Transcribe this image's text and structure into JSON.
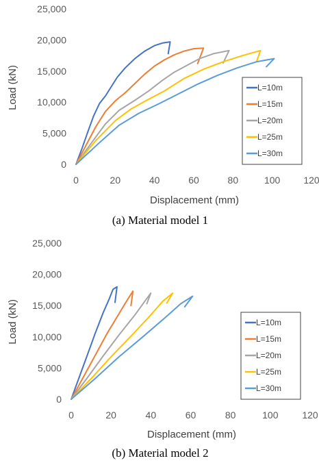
{
  "chart_data": [
    {
      "type": "line",
      "caption": "(a) Material model 1",
      "xlabel": "Displacement (mm)",
      "ylabel": "Load (kN)",
      "xlim": [
        0,
        120
      ],
      "ylim": [
        0,
        25000
      ],
      "x_ticks": [
        "0",
        "20",
        "40",
        "60",
        "80",
        "100",
        "120"
      ],
      "y_ticks": [
        "0",
        "5,000",
        "10,000",
        "15,000",
        "20,000",
        "25,000"
      ],
      "grid": false,
      "legend_position": "right",
      "series": [
        {
          "name": "L=10m",
          "color": "#4472C4",
          "points": [
            [
              0,
              0
            ],
            [
              3,
              2500
            ],
            [
              6,
              5200
            ],
            [
              9,
              7800
            ],
            [
              12,
              9800
            ],
            [
              15,
              11000
            ],
            [
              18,
              12500
            ],
            [
              21,
              14000
            ],
            [
              25,
              15500
            ],
            [
              30,
              17000
            ],
            [
              35,
              18200
            ],
            [
              40,
              19100
            ],
            [
              44,
              19500
            ],
            [
              48,
              19700
            ],
            [
              47,
              17800
            ]
          ]
        },
        {
          "name": "L=15m",
          "color": "#ED7D31",
          "points": [
            [
              0,
              0
            ],
            [
              5,
              3000
            ],
            [
              10,
              6000
            ],
            [
              15,
              8500
            ],
            [
              20,
              10200
            ],
            [
              25,
              11500
            ],
            [
              30,
              13000
            ],
            [
              35,
              14500
            ],
            [
              40,
              15800
            ],
            [
              45,
              16800
            ],
            [
              50,
              17600
            ],
            [
              55,
              18200
            ],
            [
              60,
              18600
            ],
            [
              65,
              18700
            ],
            [
              62,
              16200
            ]
          ]
        },
        {
          "name": "L=20m",
          "color": "#A5A5A5",
          "points": [
            [
              0,
              0
            ],
            [
              8,
              3500
            ],
            [
              15,
              6500
            ],
            [
              22,
              8700
            ],
            [
              30,
              10300
            ],
            [
              37,
              11800
            ],
            [
              44,
              13500
            ],
            [
              50,
              14800
            ],
            [
              57,
              16000
            ],
            [
              63,
              17000
            ],
            [
              70,
              17800
            ],
            [
              78,
              18300
            ],
            [
              75,
              16300
            ]
          ]
        },
        {
          "name": "L=25m",
          "color": "#FFC000",
          "points": [
            [
              0,
              0
            ],
            [
              10,
              3800
            ],
            [
              20,
              7000
            ],
            [
              28,
              8900
            ],
            [
              36,
              10300
            ],
            [
              45,
              11800
            ],
            [
              55,
              13800
            ],
            [
              65,
              15300
            ],
            [
              75,
              16500
            ],
            [
              85,
              17500
            ],
            [
              94,
              18300
            ],
            [
              92,
              16500
            ]
          ]
        },
        {
          "name": "L=30m",
          "color": "#5B9BD5",
          "points": [
            [
              0,
              0
            ],
            [
              12,
              3500
            ],
            [
              22,
              6300
            ],
            [
              32,
              8200
            ],
            [
              42,
              9700
            ],
            [
              52,
              11300
            ],
            [
              62,
              12900
            ],
            [
              72,
              14300
            ],
            [
              82,
              15500
            ],
            [
              92,
              16500
            ],
            [
              101,
              17000
            ],
            [
              97,
              15700
            ]
          ]
        }
      ]
    },
    {
      "type": "line",
      "caption": "(b) Material model 2",
      "xlabel": "Displacement (mm)",
      "ylabel": "Load (kN)",
      "xlim": [
        0,
        120
      ],
      "ylim": [
        0,
        25000
      ],
      "x_ticks": [
        "0",
        "20",
        "40",
        "60",
        "80",
        "100",
        "120"
      ],
      "y_ticks": [
        "0",
        "5,000",
        "10,000",
        "15,000",
        "20,000",
        "25,000"
      ],
      "grid": false,
      "legend_position": "right",
      "series": [
        {
          "name": "L=10m",
          "color": "#4472C4",
          "points": [
            [
              0,
              0
            ],
            [
              4,
              3500
            ],
            [
              8,
              7000
            ],
            [
              12,
              10500
            ],
            [
              16,
              13800
            ],
            [
              19,
              16000
            ],
            [
              21,
              17600
            ],
            [
              23,
              18000
            ],
            [
              22,
              15500
            ]
          ]
        },
        {
          "name": "L=15m",
          "color": "#ED7D31",
          "points": [
            [
              0,
              0
            ],
            [
              6,
              3500
            ],
            [
              12,
              7000
            ],
            [
              18,
              10500
            ],
            [
              24,
              13700
            ],
            [
              28,
              15800
            ],
            [
              31,
              17300
            ],
            [
              30,
              15000
            ]
          ]
        },
        {
          "name": "L=20m",
          "color": "#A5A5A5",
          "points": [
            [
              0,
              0
            ],
            [
              8,
              3400
            ],
            [
              16,
              6900
            ],
            [
              24,
              10300
            ],
            [
              32,
              13500
            ],
            [
              37,
              15700
            ],
            [
              40,
              17000
            ],
            [
              38,
              15300
            ]
          ]
        },
        {
          "name": "L=25m",
          "color": "#FFC000",
          "points": [
            [
              0,
              0
            ],
            [
              10,
              3300
            ],
            [
              20,
              6800
            ],
            [
              30,
              10100
            ],
            [
              40,
              13500
            ],
            [
              46,
              15700
            ],
            [
              51,
              17000
            ],
            [
              48,
              15400
            ]
          ]
        },
        {
          "name": "L=30m",
          "color": "#5B9BD5",
          "points": [
            [
              0,
              0
            ],
            [
              12,
              3300
            ],
            [
              24,
              6800
            ],
            [
              36,
              10000
            ],
            [
              48,
              13300
            ],
            [
              55,
              15300
            ],
            [
              61,
              16500
            ],
            [
              57,
              14800
            ]
          ]
        }
      ]
    }
  ]
}
